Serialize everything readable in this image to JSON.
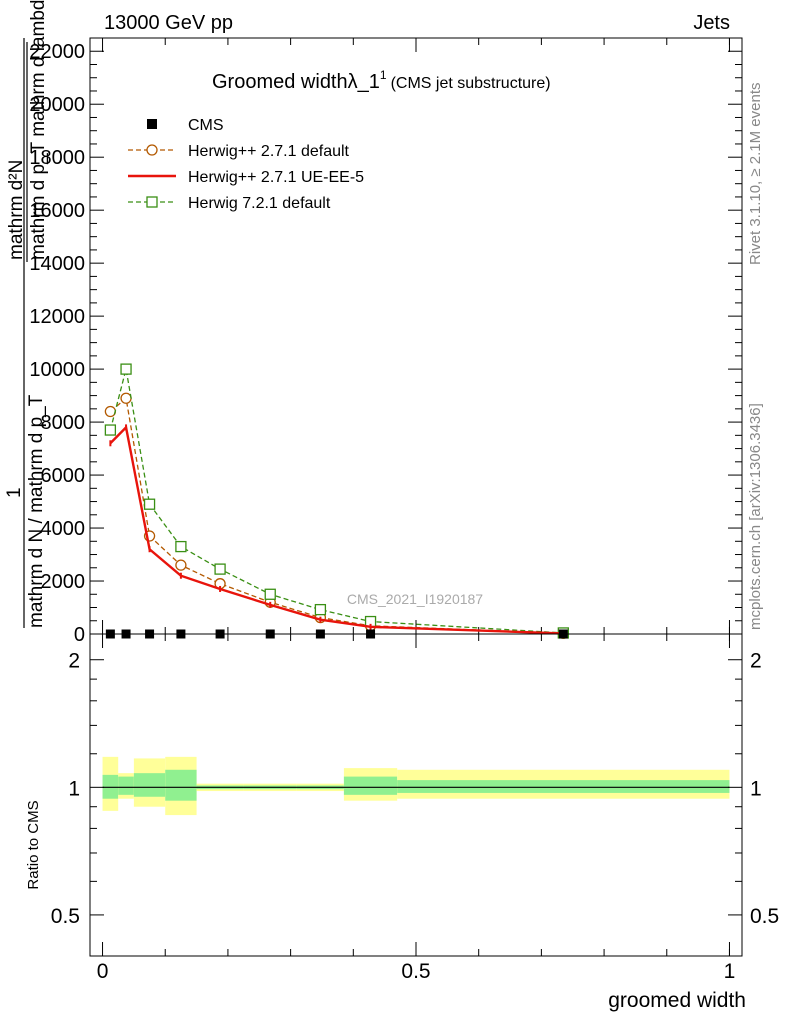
{
  "header": {
    "left": "13000 GeV pp",
    "right": "Jets"
  },
  "side_labels": {
    "rivet": "Rivet 3.1.10, ≥ 2.1M events",
    "mcplots": "mcplots.cern.ch [arXiv:1306.3436]"
  },
  "watermark": "CMS_2021_I1920187",
  "chart_data": [
    {
      "type": "line",
      "title": "Groomed widthλ_1",
      "title_sup": "1",
      "subtitle": "(CMS jet substructure)",
      "ylabel_numer": "mathrm d²N",
      "ylabel_denom": "mathrm d p_T mathrm d lambda",
      "ylabel_lines": [
        "1",
        "mathrm d N / mathrm d p_T"
      ],
      "xlim": [
        -0.02,
        1.02
      ],
      "ylim": [
        0,
        22500
      ],
      "yticks": [
        0,
        2000,
        4000,
        6000,
        8000,
        10000,
        12000,
        14000,
        16000,
        18000,
        20000,
        22000
      ],
      "ytick_labels": [
        "0",
        "2000",
        "4000",
        "6000",
        "8000",
        "10000",
        "12000",
        "14000",
        "16000",
        "18000",
        "20000",
        "22000"
      ],
      "legend_position": "top-left",
      "series": [
        {
          "name": "CMS",
          "color": "#000000",
          "marker": "filled-square",
          "x": [
            0.0125,
            0.0375,
            0.075,
            0.125,
            0.1875,
            0.2675,
            0.3475,
            0.4275,
            0.735
          ],
          "y": [
            0,
            0,
            0,
            0,
            0,
            0,
            0,
            0,
            0
          ]
        },
        {
          "name": "Herwig++ 2.7.1 default",
          "color": "#b35900",
          "marker": "open-circle",
          "dashed": true,
          "x": [
            0.0125,
            0.0375,
            0.075,
            0.125,
            0.1875,
            0.2675,
            0.3475,
            0.4275,
            0.735
          ],
          "y": [
            8400,
            8900,
            3700,
            2600,
            1900,
            1200,
            620,
            310,
            25
          ]
        },
        {
          "name": "Herwig++ 2.7.1 UE-EE-5",
          "color": "#e8140c",
          "marker": "none",
          "dashed": false,
          "x": [
            0.0125,
            0.0375,
            0.075,
            0.125,
            0.1875,
            0.2675,
            0.3475,
            0.4275,
            0.735
          ],
          "y": [
            7200,
            7800,
            3200,
            2200,
            1700,
            1100,
            540,
            270,
            20
          ]
        },
        {
          "name": "Herwig 7.2.1 default",
          "color": "#3a8f14",
          "marker": "open-square",
          "dashed": true,
          "x": [
            0.0125,
            0.0375,
            0.075,
            0.125,
            0.1875,
            0.2675,
            0.3475,
            0.4275,
            0.735
          ],
          "y": [
            7700,
            10000,
            4900,
            3300,
            2450,
            1500,
            920,
            470,
            40
          ]
        }
      ]
    },
    {
      "type": "area",
      "ylabel": "Ratio to CMS",
      "xlabel": "groomed width",
      "xlim": [
        -0.02,
        1.02
      ],
      "ylim": [
        0.4,
        2.3
      ],
      "log_y": true,
      "yticks": [
        0.5,
        1,
        2
      ],
      "ytick_labels": [
        "0.5",
        "1",
        "2"
      ],
      "xticks": [
        0,
        0.5,
        1
      ],
      "xtick_labels": [
        "0",
        "0.5",
        "1"
      ],
      "reference_line": 1,
      "bins": [
        {
          "lo": 0.0,
          "hi": 0.025,
          "stat": [
            0.94,
            1.07
          ],
          "total": [
            0.88,
            1.18
          ]
        },
        {
          "lo": 0.025,
          "hi": 0.05,
          "stat": [
            0.96,
            1.06
          ],
          "total": [
            0.94,
            1.08
          ]
        },
        {
          "lo": 0.05,
          "hi": 0.1,
          "stat": [
            0.95,
            1.08
          ],
          "total": [
            0.9,
            1.17
          ]
        },
        {
          "lo": 0.1,
          "hi": 0.15,
          "stat": [
            0.93,
            1.1
          ],
          "total": [
            0.86,
            1.18
          ]
        },
        {
          "lo": 0.15,
          "hi": 0.225,
          "stat": [
            0.99,
            1.01
          ],
          "total": [
            0.98,
            1.02
          ]
        },
        {
          "lo": 0.225,
          "hi": 0.31,
          "stat": [
            0.99,
            1.01
          ],
          "total": [
            0.98,
            1.02
          ]
        },
        {
          "lo": 0.31,
          "hi": 0.385,
          "stat": [
            0.99,
            1.01
          ],
          "total": [
            0.98,
            1.02
          ]
        },
        {
          "lo": 0.385,
          "hi": 0.47,
          "stat": [
            0.96,
            1.06
          ],
          "total": [
            0.93,
            1.11
          ]
        },
        {
          "lo": 0.47,
          "hi": 1.0,
          "stat": [
            0.97,
            1.04
          ],
          "total": [
            0.94,
            1.1
          ]
        }
      ],
      "stat_color": "#90f090",
      "total_color": "#ffff99"
    }
  ]
}
